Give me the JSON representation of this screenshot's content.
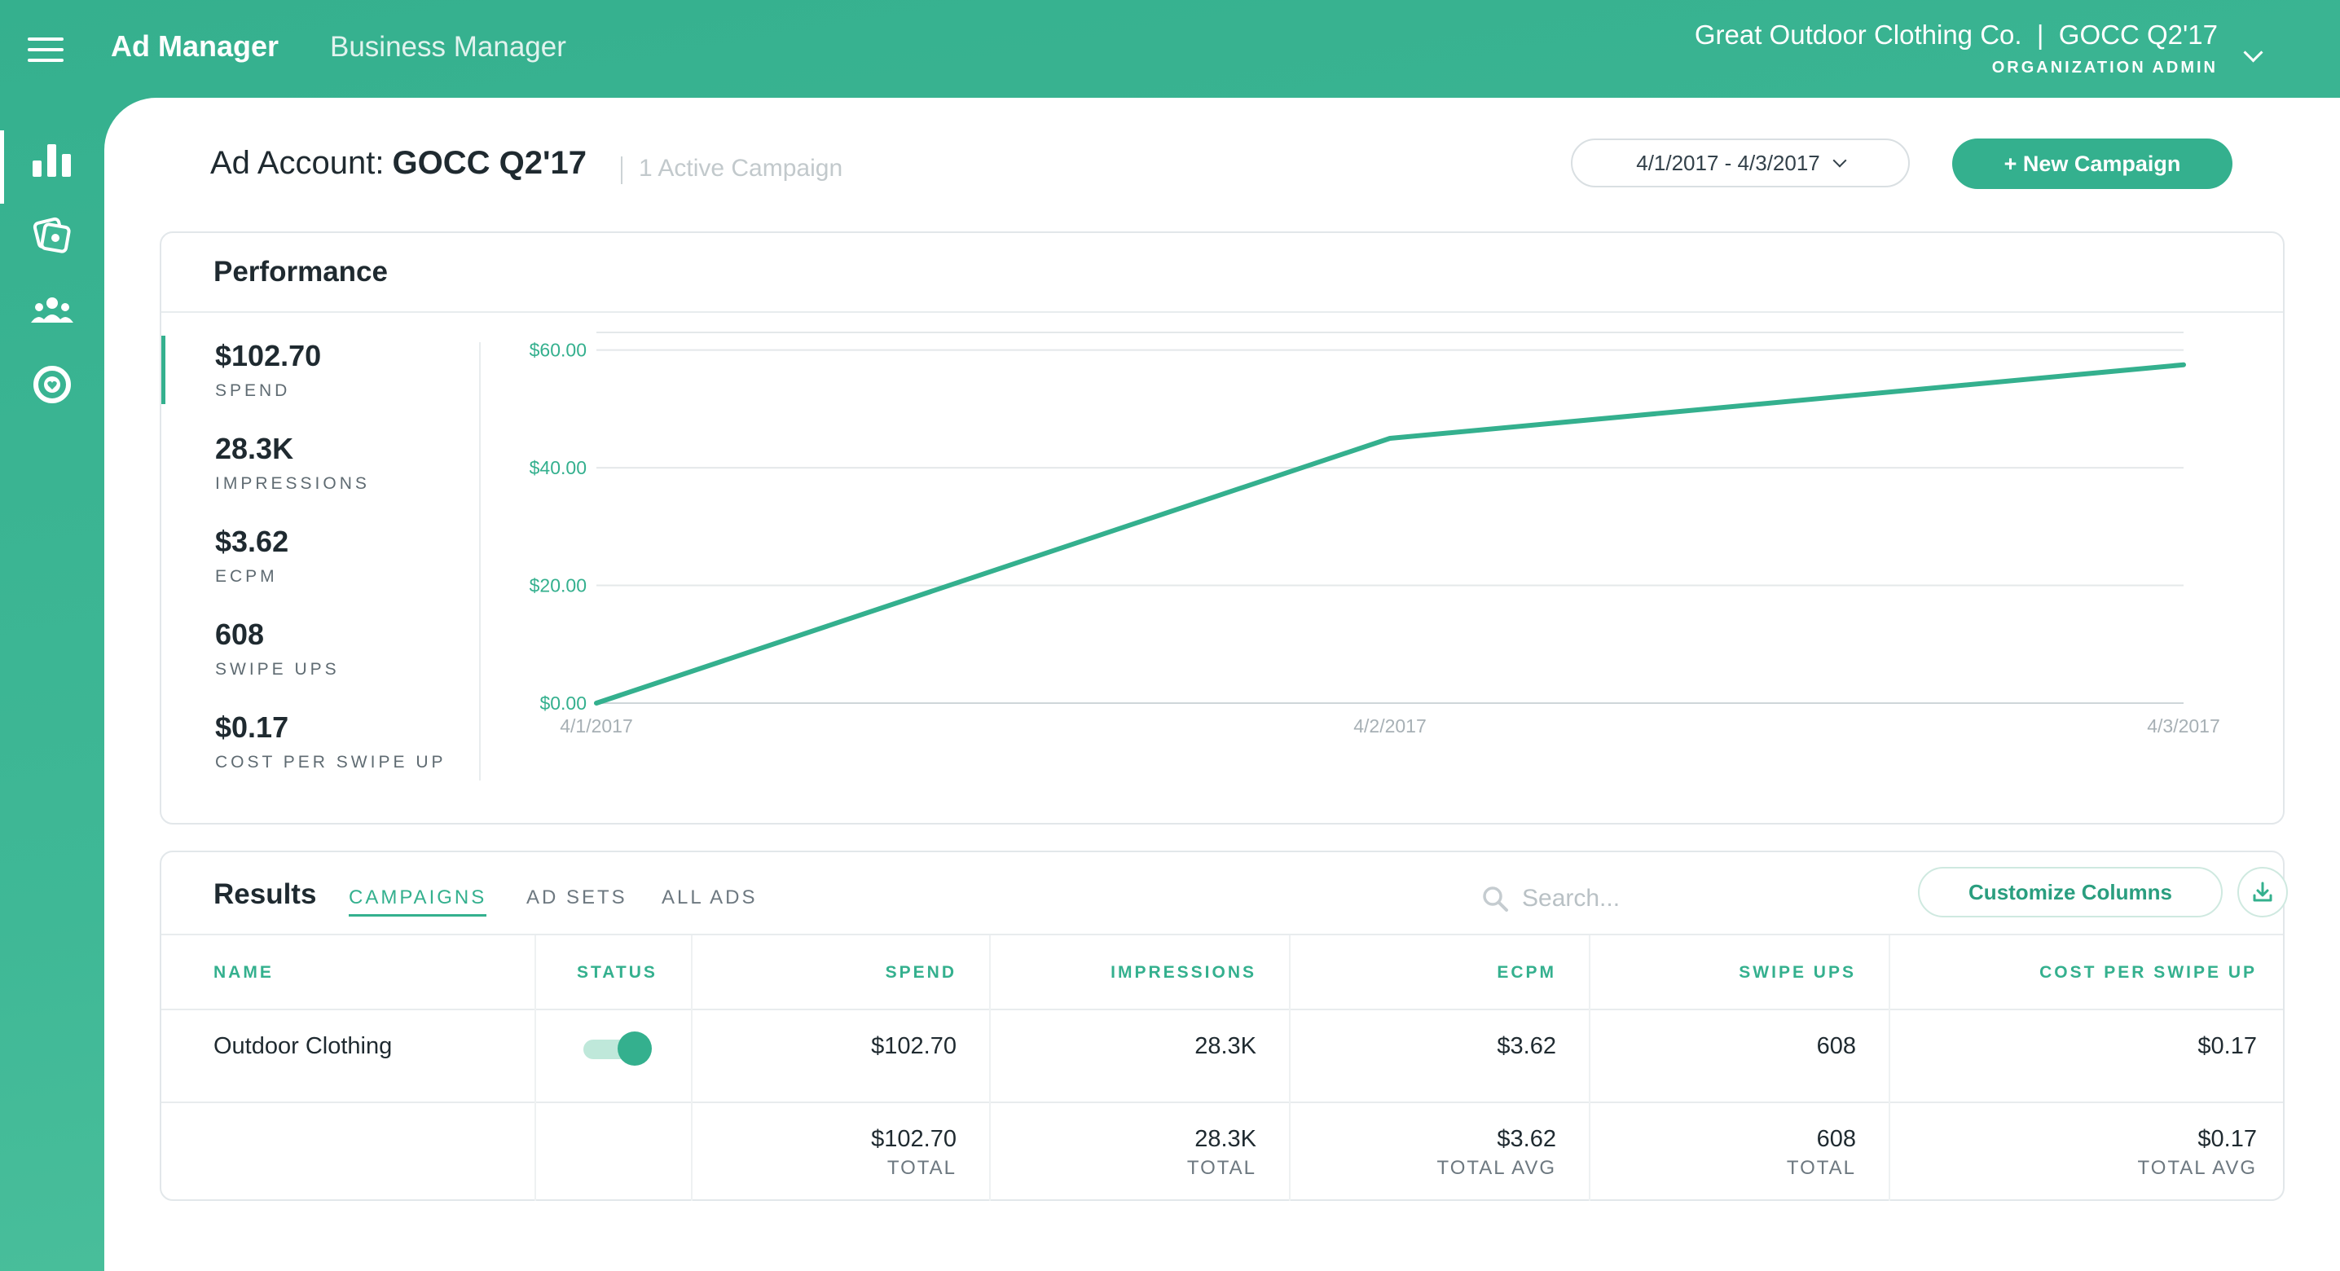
{
  "topbar": {
    "brand": "Ad Manager",
    "business_manager": "Business Manager",
    "org_name": "Great Outdoor Clothing Co.  |  GOCC Q2'17",
    "org_role": "ORGANIZATION ADMIN"
  },
  "sidebar": {
    "items": [
      {
        "icon": "bar-chart-icon",
        "active": true
      },
      {
        "icon": "creative-library-icon",
        "active": false
      },
      {
        "icon": "audiences-icon",
        "active": false
      },
      {
        "icon": "support-icon",
        "active": false
      }
    ]
  },
  "account": {
    "label": "Ad Account:",
    "name": "GOCC Q2'17",
    "subtitle": "1 Active Campaign",
    "date_range": "4/1/2017 - 4/3/2017",
    "new_campaign": "+ New Campaign"
  },
  "performance": {
    "title": "Performance",
    "stats": [
      {
        "value": "$102.70",
        "label": "SPEND"
      },
      {
        "value": "28.3K",
        "label": "IMPRESSIONS"
      },
      {
        "value": "$3.62",
        "label": "ECPM"
      },
      {
        "value": "608",
        "label": "SWIPE UPS"
      },
      {
        "value": "$0.17",
        "label": "COST PER SWIPE UP"
      }
    ]
  },
  "chart_data": {
    "type": "line",
    "x": [
      "4/1/2017",
      "4/2/2017",
      "4/3/2017"
    ],
    "series": [
      {
        "values": [
          0,
          45,
          57.5
        ]
      }
    ],
    "yticks": [
      "$0.00",
      "$20.00",
      "$40.00",
      "$60.00"
    ],
    "ylim": [
      0,
      63
    ],
    "grid": true,
    "color": "#34b08e"
  },
  "results": {
    "title": "Results",
    "tabs": [
      "CAMPAIGNS",
      "AD SETS",
      "ALL ADS"
    ],
    "search_placeholder": "Search...",
    "customize": "Customize Columns",
    "columns": [
      "NAME",
      "STATUS",
      "SPEND",
      "IMPRESSIONS",
      "ECPM",
      "SWIPE UPS",
      "COST PER SWIPE UP"
    ],
    "row": {
      "name": "Outdoor Clothing",
      "status_on": true,
      "spend": "$102.70",
      "impressions": "28.3K",
      "ecpm": "$3.62",
      "swipe_ups": "608",
      "cost_per_swipe_up": "$0.17"
    },
    "totals": [
      {
        "value": "$102.70",
        "label": "TOTAL"
      },
      {
        "value": "28.3K",
        "label": "TOTAL"
      },
      {
        "value": "$3.62",
        "label": "TOTAL AVG"
      },
      {
        "value": "608",
        "label": "TOTAL"
      },
      {
        "value": "$0.17",
        "label": "TOTAL AVG"
      }
    ]
  }
}
